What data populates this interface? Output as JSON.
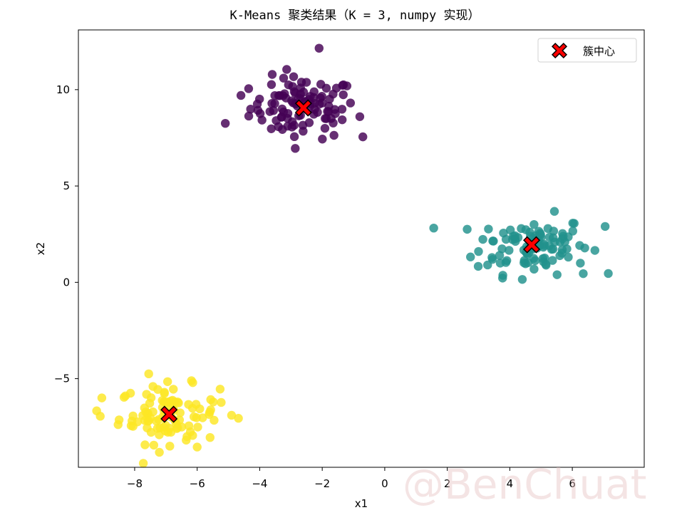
{
  "chart_data": {
    "type": "scatter",
    "title": "K-Means 聚类结果（K = 3, numpy 实现）",
    "xlabel": "x1",
    "ylabel": "x2",
    "xlim": [
      -9.8,
      8.3
    ],
    "ylim": [
      -9.6,
      13.1
    ],
    "xticks": [
      -8,
      -6,
      -4,
      -2,
      0,
      2,
      4,
      6
    ],
    "yticks": [
      -5,
      0,
      5,
      10
    ],
    "grid": false,
    "legend_position": "top-right",
    "legend": [
      {
        "label": "簇中心",
        "marker": "X",
        "color": "#ff0000"
      }
    ],
    "clusters": [
      {
        "color": "#440154",
        "center": [
          -2.6,
          9.05
        ],
        "spread": [
          0.85,
          0.8
        ],
        "count": 100
      },
      {
        "color": "#21918c",
        "center": [
          4.7,
          1.95
        ],
        "spread": [
          0.9,
          0.75
        ],
        "count": 100
      },
      {
        "color": "#fde725",
        "center": [
          -6.9,
          -6.85
        ],
        "spread": [
          0.8,
          0.75
        ],
        "count": 100
      }
    ],
    "centers": [
      {
        "x": -2.6,
        "y": 9.05
      },
      {
        "x": 4.7,
        "y": 1.95
      },
      {
        "x": -6.9,
        "y": -6.85
      }
    ],
    "outlier_points": [
      {
        "x": -2.1,
        "y": 12.15,
        "cluster": 0
      },
      {
        "x": -5.1,
        "y": 8.25,
        "cluster": 0
      },
      {
        "x": -0.7,
        "y": 7.55,
        "cluster": 0
      },
      {
        "x": -4.6,
        "y": 9.7,
        "cluster": 0
      },
      {
        "x": 7.05,
        "y": 2.9,
        "cluster": 1
      },
      {
        "x": 4.4,
        "y": 0.15,
        "cluster": 1
      },
      {
        "x": 6.35,
        "y": 0.45,
        "cluster": 1
      },
      {
        "x": 3.0,
        "y": 1.6,
        "cluster": 1
      },
      {
        "x": -9.05,
        "y": -6.0,
        "cluster": 2
      },
      {
        "x": -7.55,
        "y": -4.75,
        "cluster": 2
      },
      {
        "x": -4.9,
        "y": -6.9,
        "cluster": 2
      },
      {
        "x": -6.0,
        "y": -8.55,
        "cluster": 2
      },
      {
        "x": -9.1,
        "y": -6.95,
        "cluster": 2
      }
    ]
  },
  "watermark": "@BenChuat"
}
